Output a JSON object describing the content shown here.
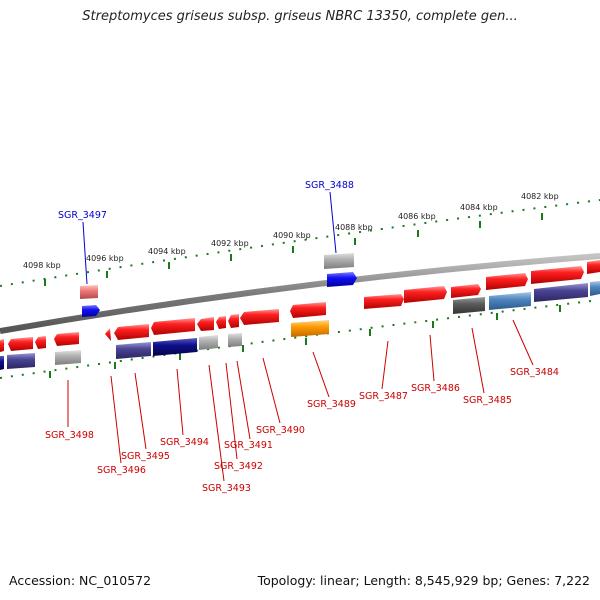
{
  "title": "Streptomyces griseus subsp. griseus NBRC 13350, complete gen...",
  "footer": {
    "accession": "Accession: NC_010572",
    "topology": "Topology: linear; Length: 8,545,929 bp; Genes: 7,222"
  },
  "colors": {
    "backbone": "#8a8a8a",
    "tick": "#1a7a1a",
    "label_red": "#cc0000",
    "label_blue": "#0000cc",
    "red_gene": "#ee1111",
    "navy_gene": "#0b0b7e",
    "blue_gene": "#1111ee",
    "grey_gene": "#a8a8a8",
    "orange_gene": "#ff9900"
  },
  "kbp_marks": [
    "4098 kbp",
    "4096 kbp",
    "4094 kbp",
    "4092 kbp",
    "4090 kbp",
    "4088 kbp",
    "4086 kbp",
    "4084 kbp",
    "4082 kbp"
  ],
  "gene_labels": [
    "SGR_3497",
    "SGR_3488",
    "SGR_3498",
    "SGR_3496",
    "SGR_3495",
    "SGR_3494",
    "SGR_3493",
    "SGR_3492",
    "SGR_3491",
    "SGR_3490",
    "SGR_3489",
    "SGR_3487",
    "SGR_3486",
    "SGR_3485",
    "SGR_3484"
  ]
}
